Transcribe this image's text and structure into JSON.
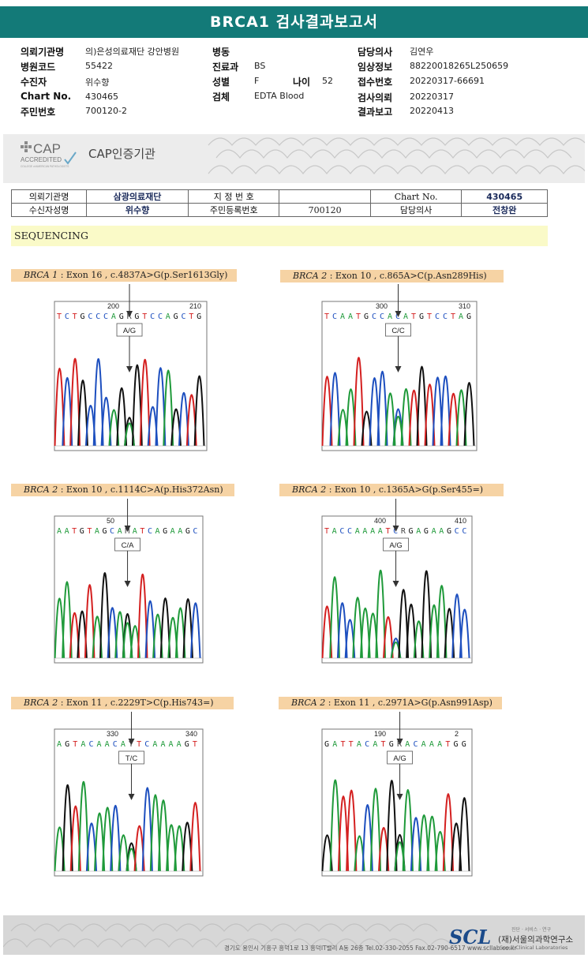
{
  "report_title": "BRCA1 검사결과보고서",
  "header": {
    "left": [
      {
        "label": "의뢰기관명",
        "value": "의)은성의료재단 강안병원"
      },
      {
        "label": "병원코드",
        "value": "55422"
      },
      {
        "label": "수진자",
        "value": "위수향"
      },
      {
        "label": "Chart No.",
        "value": "430465"
      },
      {
        "label": "주민번호",
        "value": "700120-2"
      }
    ],
    "middle": [
      {
        "label": "병동",
        "value": ""
      },
      {
        "label": "진료과",
        "value": "BS"
      },
      {
        "label": "성별",
        "value": "F"
      },
      {
        "label": "검체",
        "value": "EDTA Blood"
      }
    ],
    "age_label": "나이",
    "age_value": "52",
    "right": [
      {
        "label": "담당의사",
        "value": "김연우"
      },
      {
        "label": "임상정보",
        "value": "88220018265L250659"
      },
      {
        "label": "접수번호",
        "value": "20220317-66691"
      },
      {
        "label": "검사의뢰",
        "value": "20220317"
      },
      {
        "label": "결과보고",
        "value": "20220413"
      }
    ]
  },
  "cap": {
    "logo_text": "CAP",
    "accredited": "ACCREDITED",
    "college": "COLLEGE of AMERICAN PATHOLOGISTS",
    "name": "CAP인증기관"
  },
  "patient_table": {
    "r1": [
      "의뢰기관명",
      "삼광의료재단",
      "지 정 번 호",
      "",
      "Chart No.",
      "430465"
    ],
    "r2": [
      "수신자성명",
      "위수향",
      "주민등록번호",
      "700120",
      "담당의사",
      "전창완"
    ]
  },
  "section_title": "SEQUENCING",
  "panels": [
    {
      "gene": "BRCA 1",
      "desc": ": Exon 16 , c.4837A>G(p.Ser1613Gly)",
      "call": "A/G",
      "seq": "TCTGCCCAGRGTCCAGCTG",
      "n1": "200",
      "n2": "210"
    },
    {
      "gene": "BRCA 2",
      "desc": ": Exon 10 , c.865A>C(p.Asn289His)",
      "call": "C/C",
      "seq": "TCAATGCCACATGTCCTAG",
      "n1": "300",
      "n2": "310"
    },
    {
      "gene": "BRCA 2",
      "desc": ": Exon 10 , c.1114C>A(p.His372Asn)",
      "call": "C/A",
      "seq": "AATGTAGCAMATCAGAAGC",
      "n1": "50",
      "n2": ""
    },
    {
      "gene": "BRCA 2",
      "desc": ": Exon 10 , c.1365A>G(p.Ser455=)",
      "call": "A/G",
      "seq": "TACCAAAATCRGAGAAGCC",
      "n1": "400",
      "n2": "410"
    },
    {
      "gene": "BRCA 2",
      "desc": ": Exon 11 , c.2229T>C(p.His743=)",
      "call": "T/C",
      "seq": "AGTACAACAYTCAAAAGT",
      "n1": "330",
      "n2": "340"
    },
    {
      "gene": "BRCA 2",
      "desc": ": Exon 11 , c.2971A>G(p.Asn991Asp)",
      "call": "A/G",
      "seq": "GATTACATGRACAAATGG",
      "n1": "190",
      "n2": "2"
    }
  ],
  "footer": {
    "address": "경기도 용인시 기흥구 흥덕1로 13 흥덕IT밸리 A동 26층  Tel.02-330-2055  Fax.02-790-6517  www.scllab.co.kr",
    "logo": "SCL",
    "tagline": "진단 · 서비스 · 연구",
    "institute": "(재)서울의과학연구소",
    "institute_en": "Seoul Clinical Laboratories"
  },
  "colors": {
    "title_bg": "#137a78",
    "A": "#1f9a3a",
    "C": "#1d4fbf",
    "G": "#111111",
    "T": "#d42020"
  }
}
